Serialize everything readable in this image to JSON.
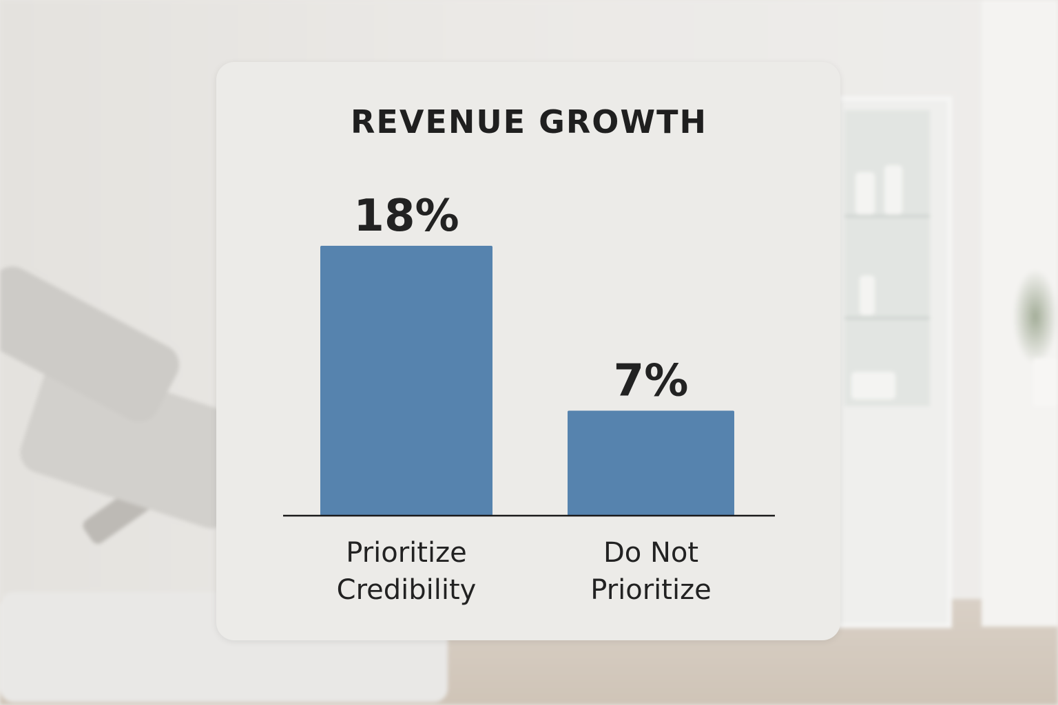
{
  "chart_data": {
    "type": "bar",
    "title": "REVENUE GROWTH",
    "categories": [
      [
        "Prioritize",
        "Credibility"
      ],
      [
        "Do Not",
        "Prioritize"
      ]
    ],
    "values": [
      18,
      7
    ],
    "value_labels": [
      "18%",
      "7%"
    ],
    "unit": "%",
    "ylim": [
      0,
      18
    ],
    "grid": false,
    "legend": "none",
    "bar_color": "#5683ae",
    "axis_color": "#1a1a1a"
  }
}
